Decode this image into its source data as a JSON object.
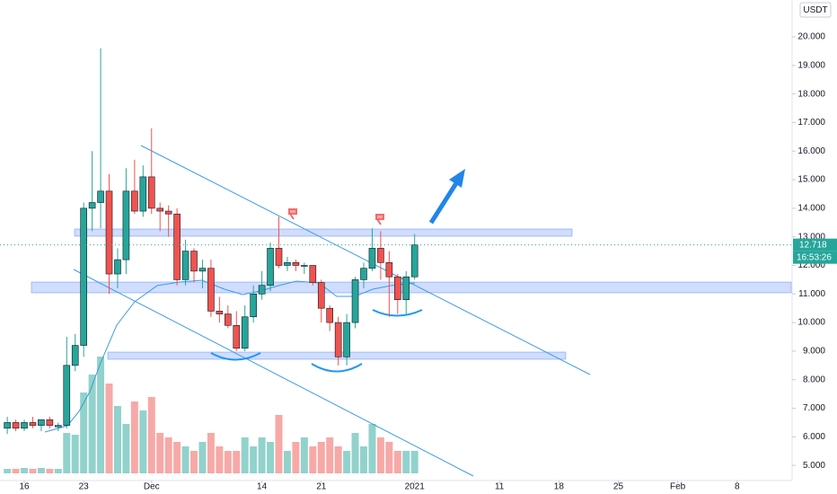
{
  "chart_data": {
    "type": "candlestick",
    "currency": "USDT",
    "x": [
      -2,
      -1,
      0,
      1,
      2,
      3,
      4,
      5,
      6,
      7,
      8,
      9,
      10,
      11,
      12,
      13,
      14,
      15,
      16,
      17,
      18,
      19,
      20,
      21,
      22,
      23,
      24,
      25,
      26,
      27,
      28,
      29,
      30,
      31,
      32,
      33,
      34,
      35,
      36,
      37,
      38,
      39,
      40,
      41,
      42,
      43,
      44,
      45,
      46
    ],
    "open": [
      6.3,
      6.5,
      6.3,
      6.5,
      6.4,
      6.6,
      6.35,
      6.4,
      8.5,
      9.2,
      14.0,
      14.2,
      14.6,
      11.7,
      12.2,
      14.6,
      13.9,
      15.1,
      14.0,
      13.9,
      13.8,
      11.5,
      12.5,
      11.8,
      11.9,
      10.4,
      10.3,
      9.9,
      9.1,
      10.2,
      11.0,
      11.3,
      12.6,
      12.0,
      12.1,
      12.0,
      12.0,
      11.4,
      10.5,
      10.0,
      8.8,
      10.0,
      11.5,
      11.9,
      12.6,
      12.1,
      11.6,
      10.8,
      11.6
    ],
    "high": [
      6.7,
      6.6,
      6.6,
      6.7,
      6.6,
      6.7,
      6.5,
      9.5,
      9.6,
      14.2,
      16.0,
      19.6,
      15.2,
      12.6,
      15.4,
      15.7,
      15.5,
      16.8,
      14.2,
      14.1,
      14.0,
      12.9,
      12.6,
      12.2,
      12.2,
      10.9,
      10.6,
      10.4,
      10.6,
      11.3,
      11.8,
      12.8,
      13.7,
      12.3,
      12.2,
      12.1,
      12.0,
      11.5,
      10.6,
      10.2,
      10.3,
      11.6,
      12.1,
      13.3,
      13.2,
      12.5,
      11.7,
      11.8,
      13.1
    ],
    "low": [
      6.1,
      6.2,
      6.2,
      6.3,
      6.2,
      6.3,
      6.2,
      6.3,
      8.3,
      8.8,
      13.2,
      13.3,
      11.0,
      11.2,
      11.7,
      13.8,
      13.7,
      13.8,
      13.2,
      13.0,
      11.3,
      11.3,
      11.4,
      11.2,
      10.2,
      10.0,
      9.8,
      9.0,
      9.0,
      10.0,
      10.8,
      11.1,
      11.9,
      11.8,
      11.8,
      11.7,
      11.3,
      10.0,
      9.7,
      8.5,
      8.5,
      9.8,
      11.2,
      11.8,
      11.5,
      10.2,
      10.3,
      10.3,
      11.5
    ],
    "close": [
      6.5,
      6.3,
      6.5,
      6.4,
      6.6,
      6.4,
      6.4,
      8.5,
      9.2,
      14.0,
      14.2,
      14.6,
      11.7,
      12.2,
      14.6,
      13.9,
      15.1,
      14.0,
      13.9,
      13.8,
      11.5,
      12.5,
      11.8,
      11.9,
      10.4,
      10.3,
      9.9,
      9.1,
      10.2,
      11.0,
      11.3,
      12.6,
      12.0,
      12.1,
      12.0,
      12.0,
      11.4,
      10.5,
      10.0,
      8.8,
      10.0,
      11.5,
      11.9,
      12.6,
      12.1,
      11.6,
      10.8,
      11.6,
      12.718
    ],
    "volume": [
      5,
      5,
      6,
      5,
      6,
      5,
      5,
      45,
      43,
      90,
      110,
      130,
      100,
      75,
      55,
      80,
      70,
      85,
      45,
      40,
      35,
      30,
      25,
      35,
      45,
      30,
      25,
      25,
      40,
      30,
      40,
      35,
      65,
      25,
      35,
      40,
      30,
      35,
      40,
      30,
      25,
      45,
      30,
      55,
      40,
      35,
      25,
      25,
      25
    ],
    "up_color": "#26a69a",
    "down_color": "#ef5350",
    "ylim": [
      4.47,
      21.29
    ],
    "yticks": [
      {
        "value": 5,
        "label": "5.000"
      },
      {
        "value": 6,
        "label": "6.000"
      },
      {
        "value": 7,
        "label": "7.000"
      },
      {
        "value": 8,
        "label": "8.000"
      },
      {
        "value": 9,
        "label": "9.000"
      },
      {
        "value": 10,
        "label": "10.000"
      },
      {
        "value": 11,
        "label": "11.000"
      },
      {
        "value": 12,
        "label": "12.000"
      },
      {
        "value": 13,
        "label": "13.000"
      },
      {
        "value": 14,
        "label": "14.000"
      },
      {
        "value": 15,
        "label": "15.000"
      },
      {
        "value": 16,
        "label": "16.000"
      },
      {
        "value": 17,
        "label": "17.000"
      },
      {
        "value": 18,
        "label": "18.000"
      },
      {
        "value": 19,
        "label": "19.000"
      },
      {
        "value": 20,
        "label": "20.000"
      }
    ],
    "xlim": [
      -2.86,
      90.48
    ],
    "xticks": [
      {
        "value": 0,
        "label": "16"
      },
      {
        "value": 7,
        "label": "23"
      },
      {
        "value": 15,
        "label": "Dec"
      },
      {
        "value": 28,
        "label": "14"
      },
      {
        "value": 35,
        "label": "21"
      },
      {
        "value": 46,
        "label": "2021"
      },
      {
        "value": 56,
        "label": "11"
      },
      {
        "value": 63,
        "label": "18"
      },
      {
        "value": 70,
        "label": "25"
      },
      {
        "value": 77,
        "label": "Feb"
      },
      {
        "value": 84,
        "label": "8"
      }
    ],
    "last_price": 12.718,
    "countdown": "16:53:26"
  }
}
